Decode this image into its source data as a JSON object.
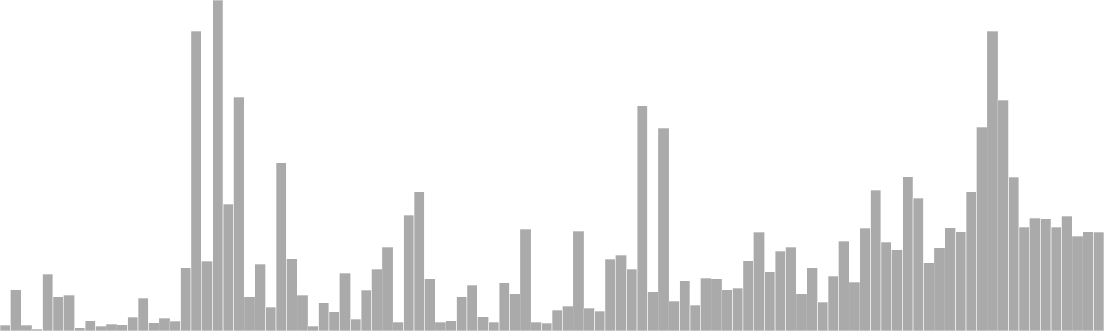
{
  "chart_data": {
    "type": "bar",
    "values": [
      8,
      60,
      8,
      3,
      82,
      50,
      52,
      5,
      15,
      7,
      10,
      9,
      20,
      48,
      12,
      19,
      14,
      92,
      435,
      101,
      480,
      184,
      339,
      50,
      97,
      35,
      244,
      105,
      52,
      7,
      41,
      28,
      84,
      17,
      59,
      90,
      122,
      13,
      168,
      202,
      76,
      13,
      15,
      50,
      66,
      21,
      13,
      70,
      54,
      148,
      13,
      11,
      30,
      36,
      145,
      33,
      29,
      104,
      110,
      90,
      327,
      57,
      294,
      43,
      73,
      37,
      77,
      76,
      60,
      62,
      102,
      143,
      86,
      116,
      122,
      54,
      92,
      42,
      80,
      130,
      71,
      149,
      204,
      129,
      118,
      224,
      193,
      99,
      121,
      150,
      144,
      202,
      296,
      435,
      335,
      223,
      151,
      164,
      163,
      151,
      167,
      138,
      144,
      143
    ],
    "ylim": [
      0,
      480
    ],
    "bar_color": "#aaaaaa",
    "bar_edge_color": "#ffffff",
    "background": "#ffffff",
    "grid": false,
    "axes_visible": false
  }
}
